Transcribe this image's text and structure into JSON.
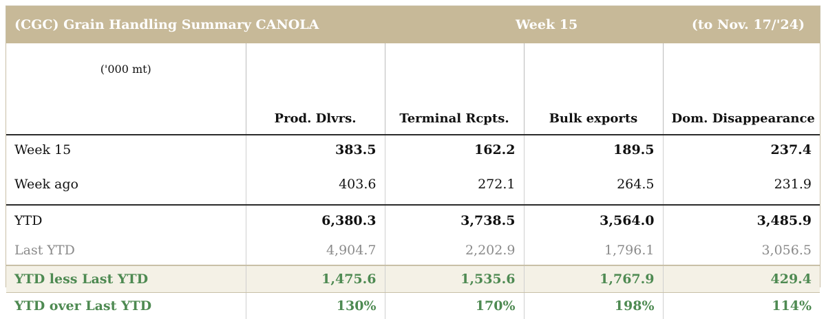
{
  "header": {
    "title": "(CGC) Grain Handling Summary CANOLA",
    "week": "Week 15",
    "period": "(to Nov. 17/'24)"
  },
  "table": {
    "units": "('000 mt)",
    "columns": [
      "Prod. Dlvrs.",
      "Terminal Rcpts.",
      "Bulk exports",
      "Dom. Disappearance"
    ],
    "rows": [
      {
        "label": "Week 15",
        "values": [
          "383.5",
          "162.2",
          "189.5",
          "237.4"
        ]
      },
      {
        "label": "Week ago",
        "values": [
          "403.6",
          "272.1",
          "264.5",
          "231.9"
        ]
      },
      {
        "label": "YTD",
        "values": [
          "6,380.3",
          "3,738.5",
          "3,564.0",
          "3,485.9"
        ]
      },
      {
        "label": "Last YTD",
        "values": [
          "4,904.7",
          "2,202.9",
          "1,796.1",
          "3,056.5"
        ]
      },
      {
        "label": "YTD less Last YTD",
        "values": [
          "1,475.6",
          "1,535.6",
          "1,767.9",
          "429.4"
        ]
      },
      {
        "label": "YTD over Last YTD",
        "values": [
          "130%",
          "170%",
          "198%",
          "114%"
        ]
      }
    ]
  },
  "colors": {
    "header_bg": "#c7b998",
    "comparison_text": "#4e8a52",
    "last_ytd_text": "#8a8a8a"
  }
}
